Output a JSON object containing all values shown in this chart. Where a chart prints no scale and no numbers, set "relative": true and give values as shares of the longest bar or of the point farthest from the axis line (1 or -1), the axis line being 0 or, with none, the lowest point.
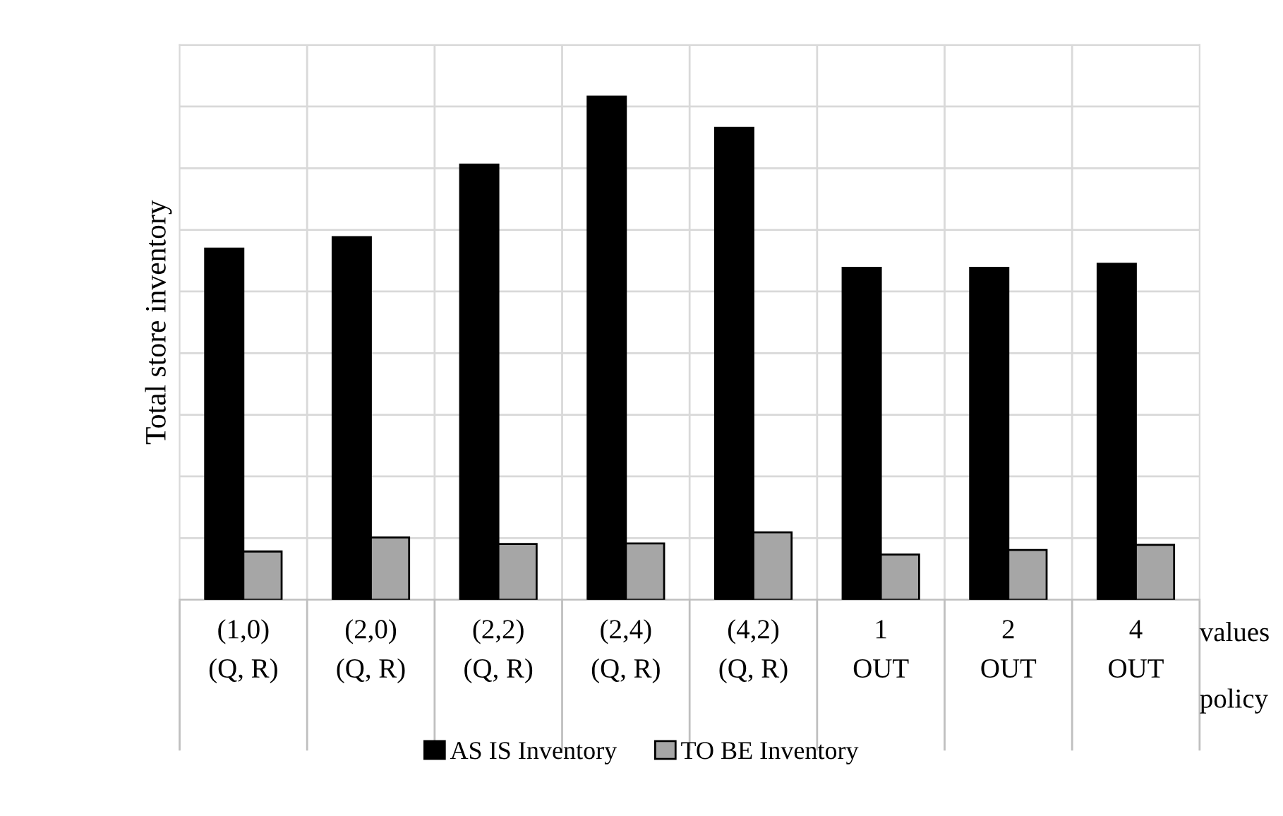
{
  "chart_data": {
    "type": "bar",
    "relative": true,
    "ylabel": "Total store inventory",
    "categories": [
      "(1,0)\n(Q, R)",
      "(2,0)\n(Q, R)",
      "(2,2)\n(Q, R)",
      "(2,4)\n(Q, R)",
      "(4,2)\n(Q, R)",
      "1\nOUT",
      "2\nOUT",
      "4\nOUT"
    ],
    "series": [
      {
        "name": "AS IS Inventory",
        "color": "#000000",
        "values": [
          0.698,
          0.721,
          0.865,
          1,
          0.938,
          0.66,
          0.66,
          0.668
        ]
      },
      {
        "name": "TO BE Inventory",
        "color": "#a6a6a6",
        "values": [
          0.096,
          0.124,
          0.111,
          0.112,
          0.134,
          0.09,
          0.099,
          0.109
        ]
      }
    ],
    "annotations": [
      "values",
      "policy"
    ],
    "grid": true,
    "legend": "bottom"
  }
}
